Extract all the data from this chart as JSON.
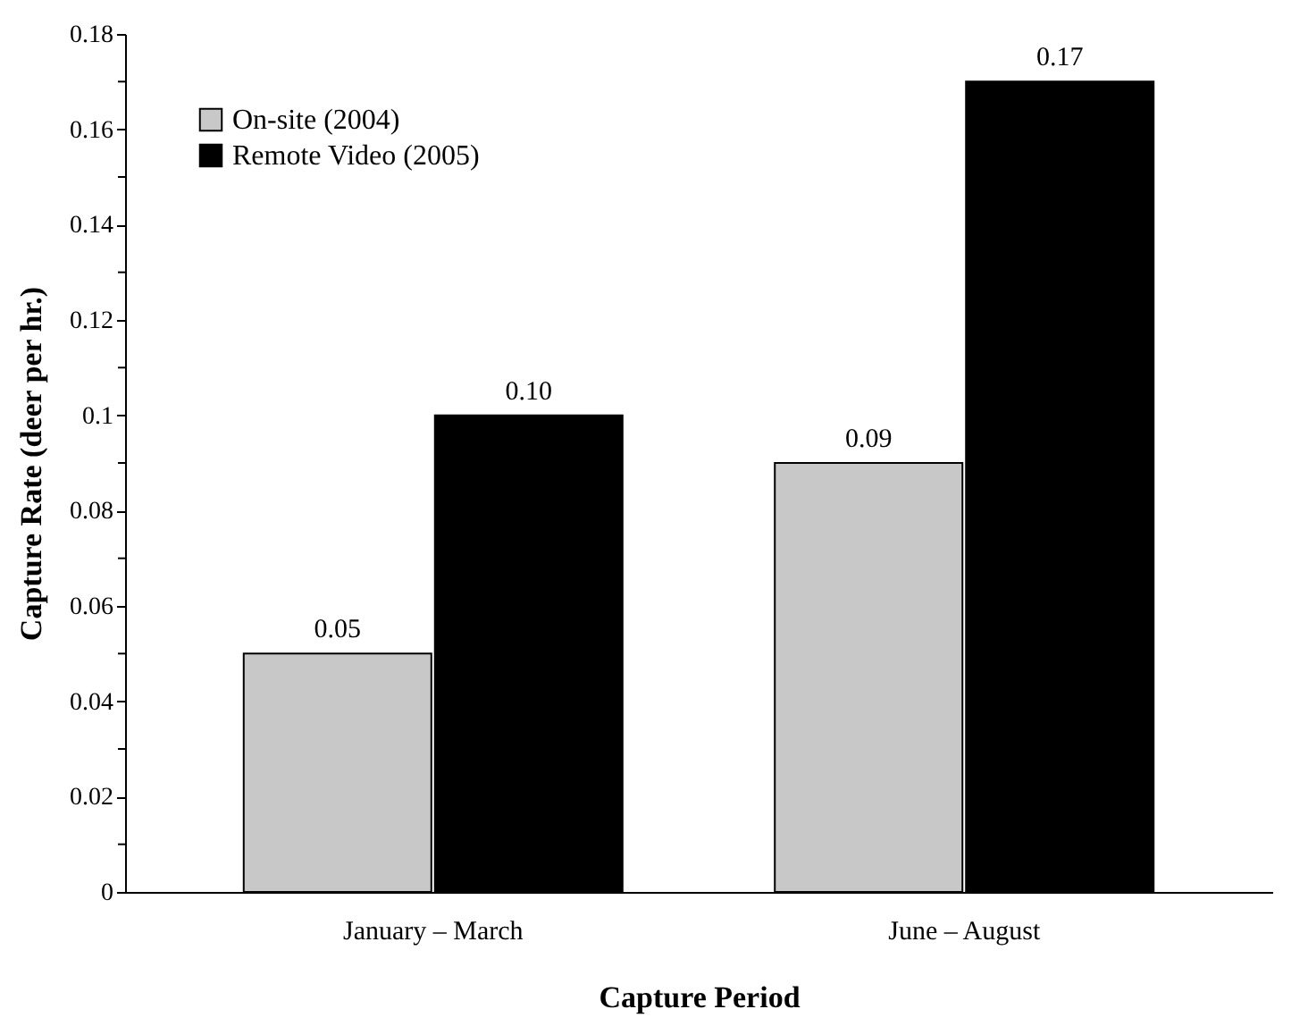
{
  "chart_data": {
    "type": "bar",
    "xlabel": "Capture Period",
    "ylabel": "Capture Rate (deer per hr.)",
    "categories": [
      "January – March",
      "June – August"
    ],
    "series": [
      {
        "name": "On-site (2004)",
        "color": "#c8c8c8",
        "values": [
          0.05,
          0.09
        ],
        "value_labels": [
          "0.05",
          "0.09"
        ]
      },
      {
        "name": "Remote Video (2005)",
        "color": "#000000",
        "values": [
          0.1,
          0.17
        ],
        "value_labels": [
          "0.10",
          "0.17"
        ]
      }
    ],
    "ylim": [
      0,
      0.18
    ],
    "yticks": [
      0,
      {
        "value": 0.01,
        "label": null
      },
      0.02,
      {
        "value": 0.03,
        "label": null
      },
      0.04,
      {
        "value": 0.05,
        "label": null
      },
      0.06,
      {
        "value": 0.07,
        "label": null
      },
      0.08,
      {
        "value": 0.09,
        "label": null
      },
      {
        "value": 0.1,
        "label": "0.1"
      },
      {
        "value": 0.11,
        "label": null
      },
      0.12,
      {
        "value": 0.13,
        "label": null
      },
      0.14,
      {
        "value": 0.15,
        "label": null
      },
      0.16,
      {
        "value": 0.17,
        "label": null
      },
      0.18
    ],
    "grid": false,
    "legend": "top left"
  }
}
